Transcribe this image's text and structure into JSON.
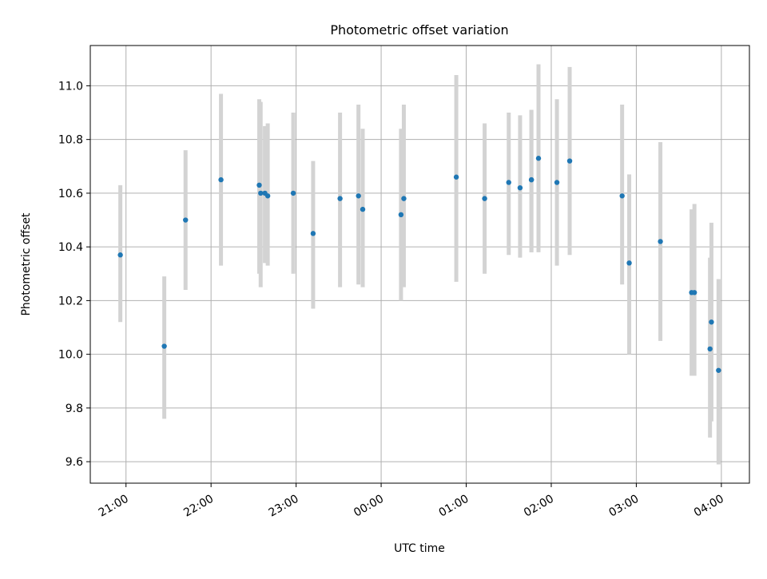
{
  "chart_data": {
    "type": "scatter",
    "title": "Photometric offset variation",
    "xlabel": "UTC time",
    "ylabel": "Photometric offset",
    "ylim": [
      9.52,
      11.15
    ],
    "xlim_hours": [
      20.58,
      28.33
    ],
    "grid": true,
    "x_ticks": [
      {
        "label": "21:00",
        "time": "21:00"
      },
      {
        "label": "22:00",
        "time": "22:00"
      },
      {
        "label": "23:00",
        "time": "23:00"
      },
      {
        "label": "00:00",
        "time": "00:00"
      },
      {
        "label": "01:00",
        "time": "01:00"
      },
      {
        "label": "02:00",
        "time": "02:00"
      },
      {
        "label": "03:00",
        "time": "03:00"
      },
      {
        "label": "04:00",
        "time": "04:00"
      }
    ],
    "y_ticks": [
      "9.6",
      "9.8",
      "10.0",
      "10.2",
      "10.4",
      "10.6",
      "10.8",
      "11.0"
    ],
    "colors": {
      "point": "#1f77b4",
      "errorbar": "#d3d3d3",
      "grid": "#b0b0b0"
    },
    "points": [
      {
        "time": "20:56",
        "y": 10.37,
        "lo": 10.12,
        "hi": 10.63
      },
      {
        "time": "21:27",
        "y": 10.03,
        "lo": 9.76,
        "hi": 10.29
      },
      {
        "time": "21:42",
        "y": 10.5,
        "lo": 10.24,
        "hi": 10.76
      },
      {
        "time": "22:07",
        "y": 10.65,
        "lo": 10.33,
        "hi": 10.97
      },
      {
        "time": "22:34",
        "y": 10.63,
        "lo": 10.3,
        "hi": 10.95
      },
      {
        "time": "22:35",
        "y": 10.6,
        "lo": 10.25,
        "hi": 10.94
      },
      {
        "time": "22:38",
        "y": 10.6,
        "lo": 10.34,
        "hi": 10.85
      },
      {
        "time": "22:40",
        "y": 10.59,
        "lo": 10.33,
        "hi": 10.86
      },
      {
        "time": "22:58",
        "y": 10.6,
        "lo": 10.3,
        "hi": 10.9
      },
      {
        "time": "23:12",
        "y": 10.45,
        "lo": 10.17,
        "hi": 10.72
      },
      {
        "time": "23:31",
        "y": 10.58,
        "lo": 10.25,
        "hi": 10.9
      },
      {
        "time": "23:44",
        "y": 10.59,
        "lo": 10.26,
        "hi": 10.93
      },
      {
        "time": "23:47",
        "y": 10.54,
        "lo": 10.25,
        "hi": 10.84
      },
      {
        "time": "00:14",
        "y": 10.52,
        "lo": 10.2,
        "hi": 10.84
      },
      {
        "time": "00:16",
        "y": 10.58,
        "lo": 10.25,
        "hi": 10.93
      },
      {
        "time": "00:53",
        "y": 10.66,
        "lo": 10.27,
        "hi": 11.04
      },
      {
        "time": "01:13",
        "y": 10.58,
        "lo": 10.3,
        "hi": 10.86
      },
      {
        "time": "01:30",
        "y": 10.64,
        "lo": 10.37,
        "hi": 10.9
      },
      {
        "time": "01:38",
        "y": 10.62,
        "lo": 10.36,
        "hi": 10.89
      },
      {
        "time": "01:46",
        "y": 10.65,
        "lo": 10.38,
        "hi": 10.91
      },
      {
        "time": "01:46",
        "y": 10.65,
        "lo": 10.38,
        "hi": 10.91
      },
      {
        "time": "01:51",
        "y": 10.73,
        "lo": 10.38,
        "hi": 11.08
      },
      {
        "time": "02:04",
        "y": 10.64,
        "lo": 10.33,
        "hi": 10.95
      },
      {
        "time": "02:13",
        "y": 10.72,
        "lo": 10.37,
        "hi": 11.07
      },
      {
        "time": "02:50",
        "y": 10.59,
        "lo": 10.26,
        "hi": 10.93
      },
      {
        "time": "02:55",
        "y": 10.34,
        "lo": 10.0,
        "hi": 10.67
      },
      {
        "time": "03:17",
        "y": 10.42,
        "lo": 10.05,
        "hi": 10.79
      },
      {
        "time": "03:39",
        "y": 10.23,
        "lo": 9.92,
        "hi": 10.54
      },
      {
        "time": "03:41",
        "y": 10.23,
        "lo": 9.92,
        "hi": 10.56
      },
      {
        "time": "03:52",
        "y": 10.02,
        "lo": 9.69,
        "hi": 10.36
      },
      {
        "time": "03:53",
        "y": 10.12,
        "lo": 9.75,
        "hi": 10.49
      },
      {
        "time": "03:58",
        "y": 9.94,
        "lo": 9.59,
        "hi": 10.28
      }
    ]
  }
}
